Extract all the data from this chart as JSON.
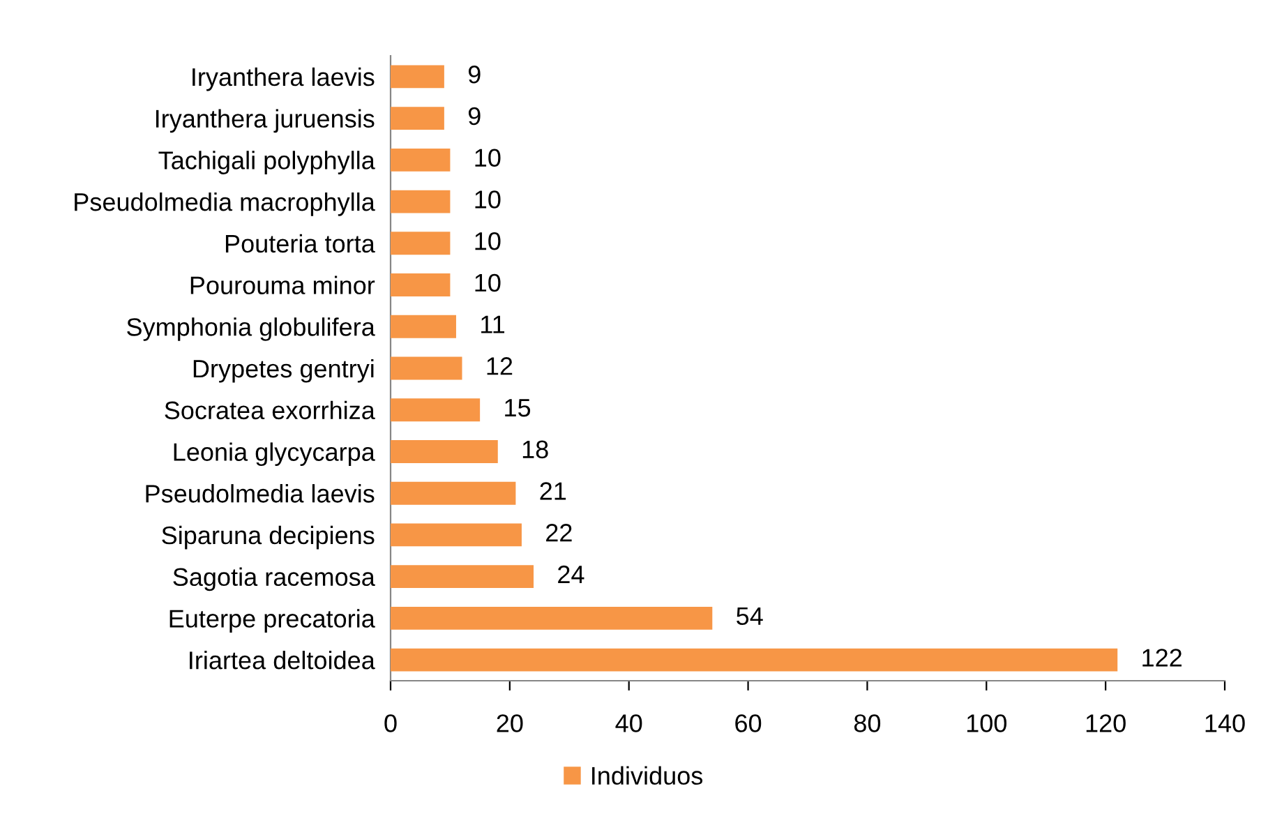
{
  "chart_data": {
    "type": "bar",
    "orientation": "horizontal",
    "categories": [
      "Iryanthera laevis",
      "Iryanthera juruensis",
      "Tachigali polyphylla",
      "Pseudolmedia macrophylla",
      "Pouteria torta",
      "Pourouma minor",
      "Symphonia globulifera",
      "Drypetes gentryi",
      "Socratea exorrhiza",
      "Leonia glycycarpa",
      "Pseudolmedia laevis",
      "Siparuna decipiens",
      "Sagotia racemosa",
      "Euterpe precatoria",
      "Iriartea deltoidea"
    ],
    "series": [
      {
        "name": "Individuos",
        "color": "#f79646",
        "values": [
          9,
          9,
          10,
          10,
          10,
          10,
          11,
          12,
          15,
          18,
          21,
          22,
          24,
          54,
          122
        ]
      }
    ],
    "xlim": [
      0,
      140
    ],
    "xticks": [
      0,
      20,
      40,
      60,
      80,
      100,
      120,
      140
    ],
    "data_labels": true,
    "legend": "bottom",
    "grid": false
  }
}
